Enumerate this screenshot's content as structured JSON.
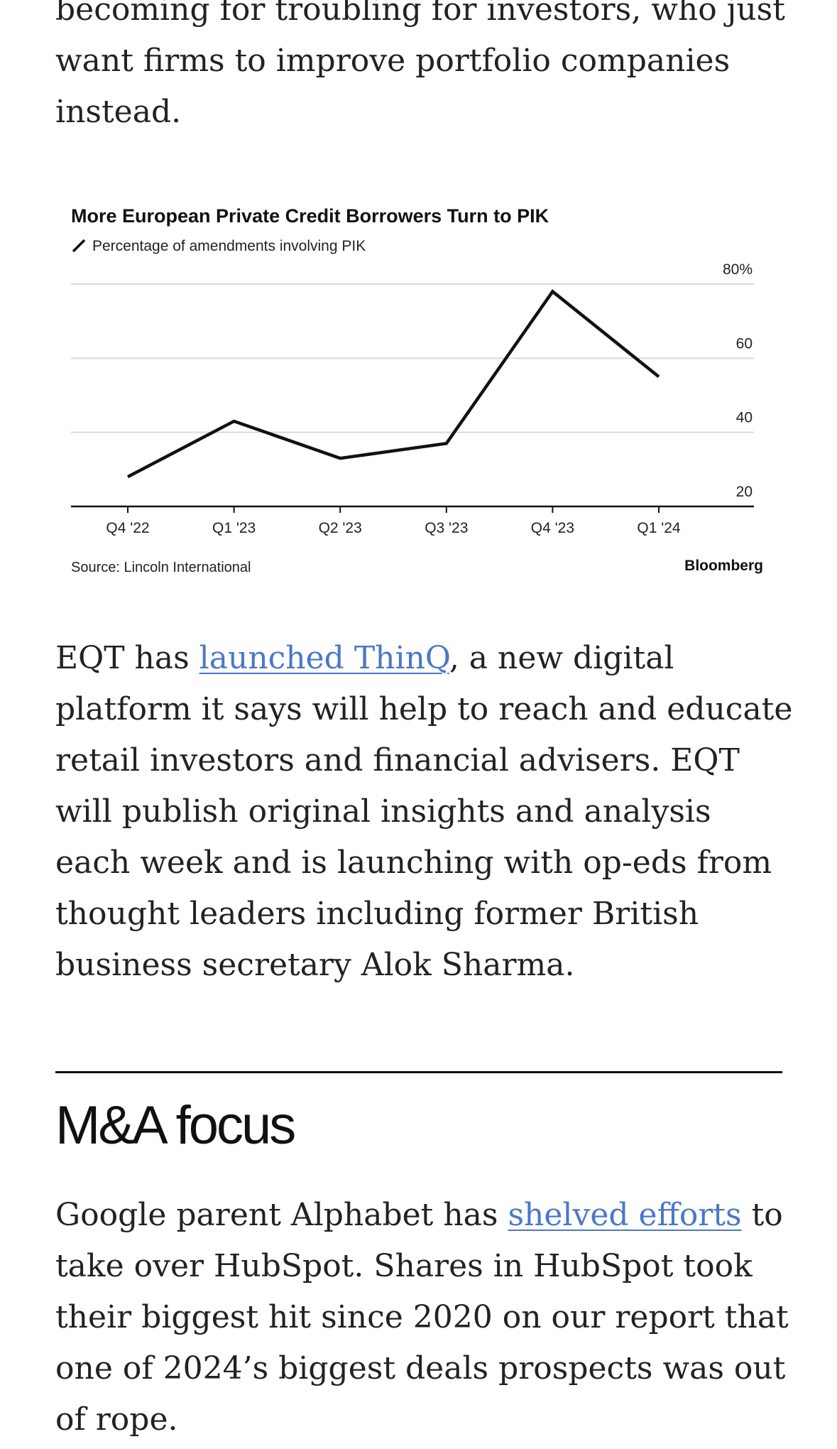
{
  "intro": {
    "text": "becoming for troubling for investors, who just want firms to improve portfolio companies instead."
  },
  "chart": {
    "title": "More European Private Credit Borrowers Turn to PIK",
    "legend_label": "Percentage of amendments involving PIK",
    "source": "Source: Lincoln International",
    "brand": "Bloomberg",
    "y_tick_labels": [
      "80%",
      "60",
      "40",
      "20"
    ]
  },
  "chart_data": {
    "type": "line",
    "title": "More European Private Credit Borrowers Turn to PIK",
    "categories": [
      "Q4 '22",
      "Q1 '23",
      "Q2 '23",
      "Q3 '23",
      "Q4 '23",
      "Q1 '24"
    ],
    "series": [
      {
        "name": "Percentage of amendments involving PIK",
        "values": [
          28,
          43,
          33,
          37,
          78,
          55
        ]
      }
    ],
    "ylim": [
      20,
      80
    ],
    "yticks": [
      20,
      40,
      60,
      80
    ],
    "grid": true,
    "legend": "top-left",
    "line_color": "#111111"
  },
  "eqt": {
    "before": "EQT has ",
    "link": "launched ThinQ",
    "after": ", a new digital platform it says will help to reach and educate retail investors and financial advisers. EQT will publish original insights and analysis each week and is launching with op-eds from thought leaders including former British business secretary Alok Sharma."
  },
  "section": {
    "heading": "M&A focus"
  },
  "google": {
    "before": "Google parent Alphabet has ",
    "link": "shelved efforts",
    "after": " to take over HubSpot. Shares in HubSpot took their biggest hit since 2020 on our report that one of 2024’s biggest deals prospects was out of rope."
  },
  "colors": {
    "link": "#4a78c8",
    "text": "#222222",
    "grid": "#d9d9d9"
  }
}
